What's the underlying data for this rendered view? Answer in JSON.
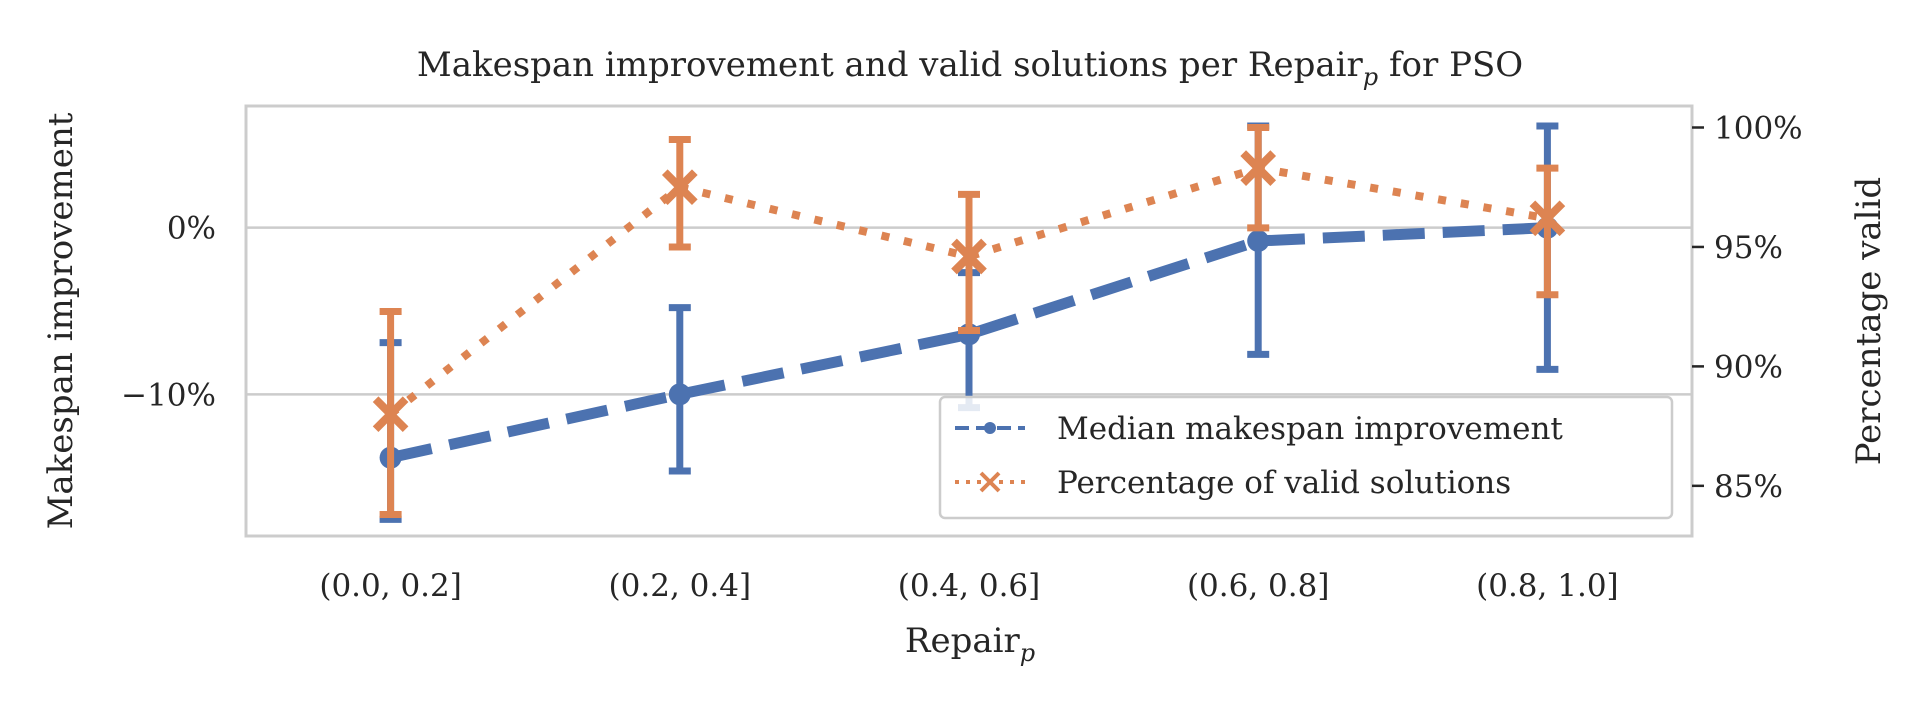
{
  "chart_data": {
    "type": "line",
    "title": "Makespan improvement and valid solutions per Repair",
    "title_subscript": "p",
    "title_suffix": " for PSO",
    "xlabel": "Repair",
    "xlabel_subscript": "p",
    "ylabel_left": "Makespan improvement",
    "ylabel_right": "Percentage valid",
    "categories": [
      "(0.0, 0.2]",
      "(0.2, 0.4]",
      "(0.4, 0.6]",
      "(0.6, 0.8]",
      "(0.8, 1.0]"
    ],
    "left_axis": {
      "ylim": [
        -18.5,
        7.3
      ],
      "ticks": [
        0,
        -10
      ],
      "tick_labels": [
        "0%",
        "−10%"
      ],
      "grid": true
    },
    "right_axis": {
      "ylim": [
        82.9,
        100.9
      ],
      "ticks": [
        100,
        95,
        90,
        85
      ],
      "tick_labels": [
        "100%",
        "95%",
        "90%",
        "85%"
      ]
    },
    "series": [
      {
        "name": "Median makespan improvement",
        "axis": "left",
        "color": "#4c72b0",
        "linestyle": "dashed",
        "marker": "circle",
        "values": [
          -13.8,
          -10.0,
          -6.4,
          -0.8,
          0.0
        ],
        "err_low": [
          -17.5,
          -14.6,
          -10.8,
          -7.6,
          -8.5
        ],
        "err_high": [
          -6.9,
          -4.8,
          -2.7,
          6.1,
          6.1
        ]
      },
      {
        "name": "Percentage of valid solutions",
        "axis": "right",
        "color": "#dd8452",
        "linestyle": "dotted",
        "marker": "x",
        "values": [
          88.0,
          97.5,
          94.6,
          98.3,
          96.2
        ],
        "err_low": [
          83.8,
          95.0,
          91.5,
          95.8,
          93.0
        ],
        "err_high": [
          92.3,
          99.5,
          97.2,
          100.0,
          98.3
        ]
      }
    ],
    "legend_position": "lower-right"
  }
}
